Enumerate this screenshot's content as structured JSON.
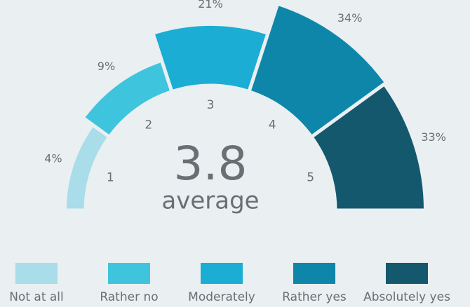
{
  "chart_data": {
    "type": "radial-bar",
    "categories": [
      "Not at all",
      "Rather no",
      "Moderately",
      "Rather yes",
      "Absolutely yes"
    ],
    "values": [
      4,
      9,
      21,
      34,
      33
    ],
    "value_labels": [
      "4%",
      "9%",
      "21%",
      "34%",
      "33%"
    ],
    "scale_labels": [
      "1",
      "2",
      "3",
      "4",
      "5"
    ],
    "colors": [
      "#a8dde9",
      "#3fc4dd",
      "#1badd4",
      "#0e86aa",
      "#14586e"
    ],
    "average": 3.8,
    "average_label": "average"
  }
}
